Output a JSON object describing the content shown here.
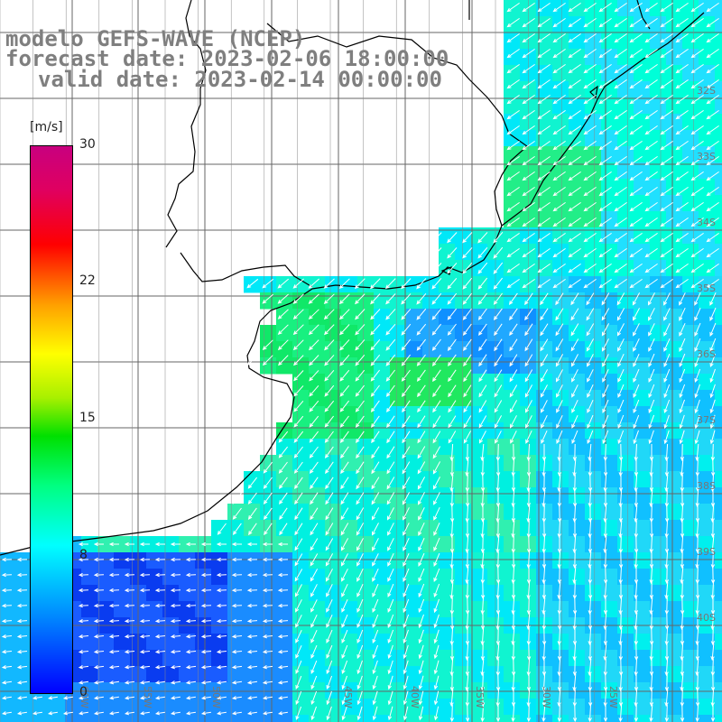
{
  "title": {
    "line1": "modelo GEFS-WAVE (NCEP)",
    "line2": "forecast date: 2023-02-06 18:00:00",
    "line3": "valid date: 2023-02-14 00:00:00"
  },
  "colorbar": {
    "unit": "[m/s]",
    "ticks": [
      "30",
      "22",
      "15",
      "8",
      "0"
    ],
    "colors": [
      "#0000ff",
      "#0088ff",
      "#00ffff",
      "#00ff80",
      "#00e000",
      "#ffff00",
      "#ffa000",
      "#ff0000",
      "#c8007f"
    ]
  },
  "map": {
    "lon_labels": [
      "60W",
      "55W",
      "50W",
      "45W",
      "40W",
      "35W",
      "30W",
      "25W"
    ],
    "lat_labels": [
      "32S",
      "33S",
      "34S",
      "35S",
      "36S",
      "37S",
      "38S",
      "39S",
      "40S"
    ]
  }
}
